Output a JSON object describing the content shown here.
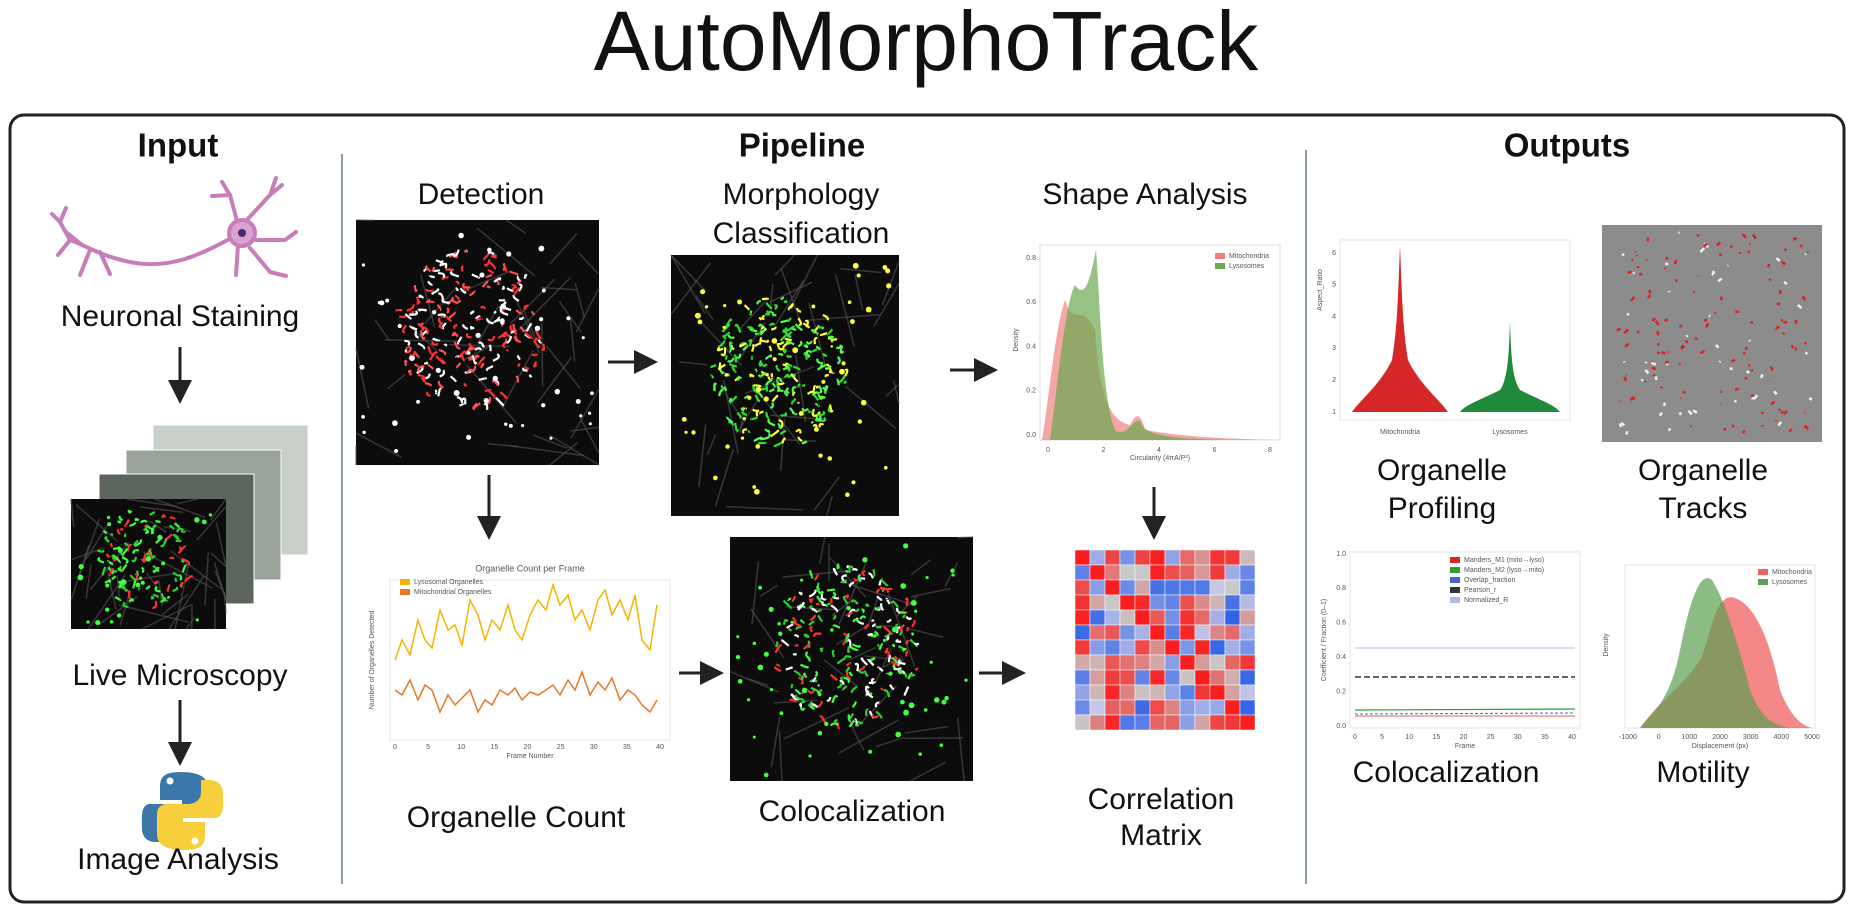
{
  "title": "AutoMorphoTrack",
  "input": {
    "heading": "Input",
    "steps": [
      "Neuronal Staining",
      "Live Microscopy",
      "Image Analysis"
    ]
  },
  "pipeline": {
    "heading": "Pipeline",
    "detection": "Detection",
    "morphology": [
      "Morphology",
      "Classification"
    ],
    "shape_analysis": {
      "label": "Shape Analysis",
      "legend": [
        "Mitochondria",
        "Lysosomes"
      ],
      "x_label": "Circularity (4πA/P²)",
      "y_label": "Density",
      "xticks": [
        "0",
        "2",
        "4",
        "6",
        "8"
      ],
      "yticks": [
        "0.0",
        "0.2",
        "0.4",
        "0.6",
        "0.8"
      ]
    },
    "organelle_count": {
      "label": "Organelle Count",
      "title": "Organelle Count per Frame",
      "legend": [
        "Lysosomal Organelles",
        "Mitochondrial Organelles"
      ],
      "x_label": "Frame Number",
      "y_label": "Number of Organelles Detected",
      "xticks": [
        "0",
        "5",
        "10",
        "15",
        "20",
        "25",
        "30",
        "35",
        "40"
      ]
    },
    "colocalization": "Colocalization",
    "correlation": [
      "Correlation",
      "Matrix"
    ]
  },
  "outputs": {
    "heading": "Outputs",
    "profiling": {
      "label": [
        "Organelle",
        "Profiling"
      ],
      "y_label": "Aspect_Ratio",
      "categories": [
        "Mitochondria",
        "Lysosomes"
      ],
      "yticks": [
        "1",
        "2",
        "3",
        "4",
        "5",
        "6"
      ]
    },
    "tracks": [
      "Organelle",
      "Tracks"
    ],
    "colocalization": {
      "label": "Colocalization",
      "legend": [
        "Manders_M1 (mito→lyso)",
        "Manders_M2 (lyso→mito)",
        "Overlap_fraction",
        "Pearson_r",
        "Normalized_R"
      ],
      "x_label": "Frame",
      "y_label": "Coefficient / Fraction (0–1)",
      "xticks": [
        "0",
        "5",
        "10",
        "15",
        "20",
        "25",
        "30",
        "35",
        "40"
      ],
      "yticks": [
        "0.0",
        "0.2",
        "0.4",
        "0.6",
        "0.8",
        "1.0"
      ]
    },
    "motility": {
      "label": "Motility",
      "legend": [
        "Mitochondria",
        "Lysosomes"
      ],
      "x_label": "Displacement (px)",
      "y_label": "Density",
      "xticks": [
        "-1000",
        "0",
        "1000",
        "2000",
        "3000",
        "4000",
        "5000"
      ]
    }
  }
}
